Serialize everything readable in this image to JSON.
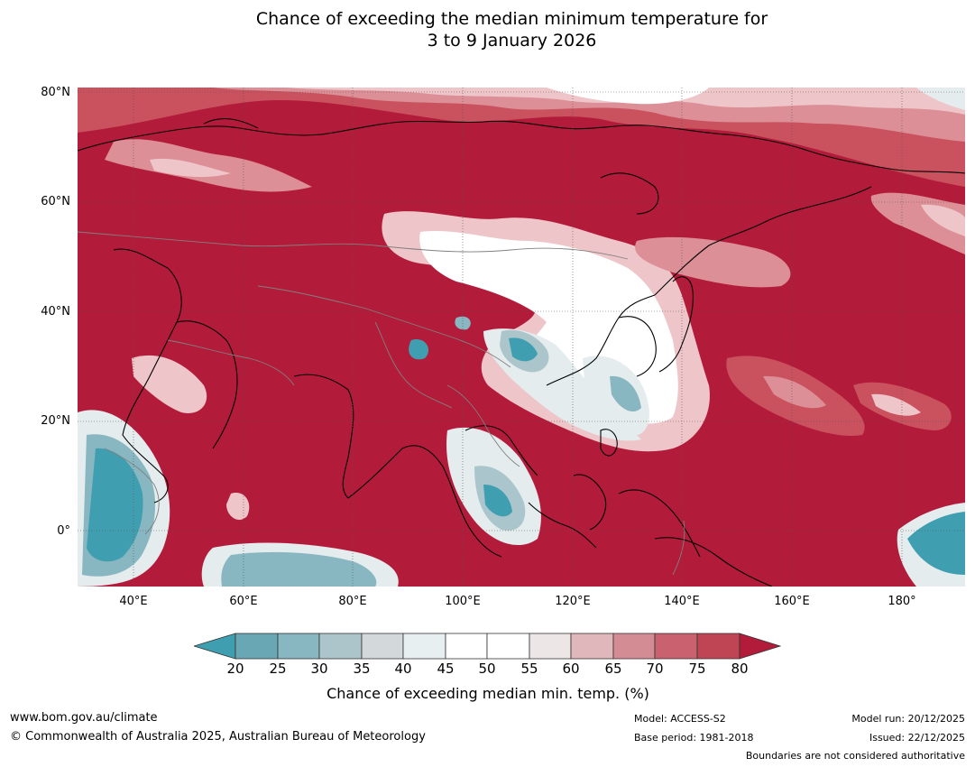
{
  "title": {
    "line1": "Chance of exceeding the median minimum temperature for",
    "line2": "3 to 9 January 2026"
  },
  "map": {
    "lat_labels": [
      "80°N",
      "60°N",
      "40°N",
      "20°N",
      "0°"
    ],
    "lon_labels": [
      "40°E",
      "60°E",
      "80°E",
      "100°E",
      "120°E",
      "140°E",
      "160°E",
      "180°"
    ],
    "colors": {
      "strong_high": "#b31b3a",
      "high": "#c9525e",
      "mid_high": "#dc8f96",
      "light_high": "#eec6c9",
      "neutral": "#ffffff",
      "light_low": "#e4ecee",
      "low": "#aac6cc",
      "strong_low": "#3f9fb1",
      "coastline": "#000000",
      "border": "#808080"
    }
  },
  "colorbar": {
    "ticks": [
      "20",
      "25",
      "30",
      "35",
      "40",
      "45",
      "50",
      "55",
      "60",
      "65",
      "70",
      "75",
      "80"
    ],
    "colors": [
      "#3f9fb1",
      "#6aa7b4",
      "#88b6c1",
      "#abc5ca",
      "#d3d9db",
      "#e8eff1",
      "#ffffff",
      "#ffffff",
      "#ece6e7",
      "#e0b7bb",
      "#d48c94",
      "#c9626e",
      "#bf4554",
      "#b31b3a"
    ],
    "label": "Chance of exceeding median min. temp. (%)"
  },
  "footer": {
    "website": "www.bom.gov.au/climate",
    "copyright": "© Commonwealth of Australia 2025, Australian Bureau of Meteorology",
    "model": "Model: ACCESS-S2",
    "base_period": "Base period: 1981-2018",
    "model_run": "Model run: 20/12/2025",
    "issued": "Issued: 22/12/2025",
    "disclaimer": "Boundaries are not considered authoritative"
  }
}
